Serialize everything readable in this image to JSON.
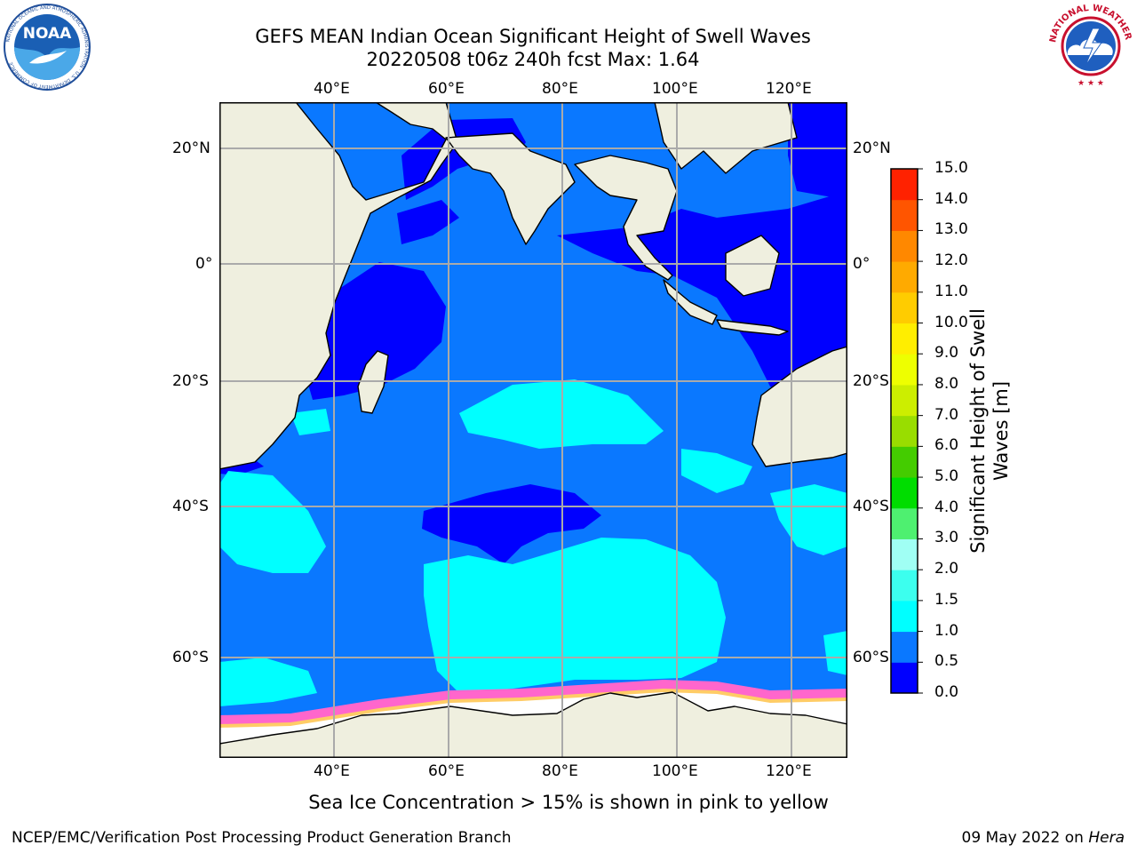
{
  "header": {
    "title_line1": "GEFS MEAN Indian Ocean Significant Height of Swell Waves",
    "title_line2": "20220508 t06z 240h fcst   Max: 1.64"
  },
  "logos": {
    "left_text": "NOAA",
    "left_ring_text": "NATIONAL OCEANIC AND ATMOSPHERIC ADMINISTRATION · U.S. DEPARTMENT OF COMMERCE",
    "right_ring_text": "NATIONAL WEATHER SERVICE"
  },
  "map": {
    "lon_labels": [
      "40°E",
      "60°E",
      "80°E",
      "100°E",
      "120°E"
    ],
    "lat_labels": [
      "20°N",
      "0°",
      "20°S",
      "40°S",
      "60°S"
    ]
  },
  "colorbar": {
    "label_line1": "Significant Height of Swell",
    "label_line2": "Waves [m]",
    "ticks": [
      "0.0",
      "0.5",
      "1.0",
      "1.5",
      "2.0",
      "3.0",
      "4.0",
      "5.0",
      "6.0",
      "7.0",
      "8.0",
      "9.0",
      "10.0",
      "11.0",
      "12.0",
      "13.0",
      "14.0",
      "15.0"
    ],
    "colors": [
      "#0000ff",
      "#0a78ff",
      "#00ffff",
      "#3cffee",
      "#a0fff4",
      "#4ef070",
      "#00dd00",
      "#44cc00",
      "#99dd00",
      "#ccee00",
      "#eeff00",
      "#ffee00",
      "#ffcc00",
      "#ffaa00",
      "#ff8800",
      "#ff5500",
      "#ff2200",
      "#ff0000"
    ]
  },
  "footer": {
    "note": "Sea Ice Concentration > 15% is shown in pink to yellow",
    "left": "NCEP/EMC/Verification Post Processing Product Generation Branch",
    "right_date": "09 May 2022 on ",
    "right_host": "Hera"
  }
}
